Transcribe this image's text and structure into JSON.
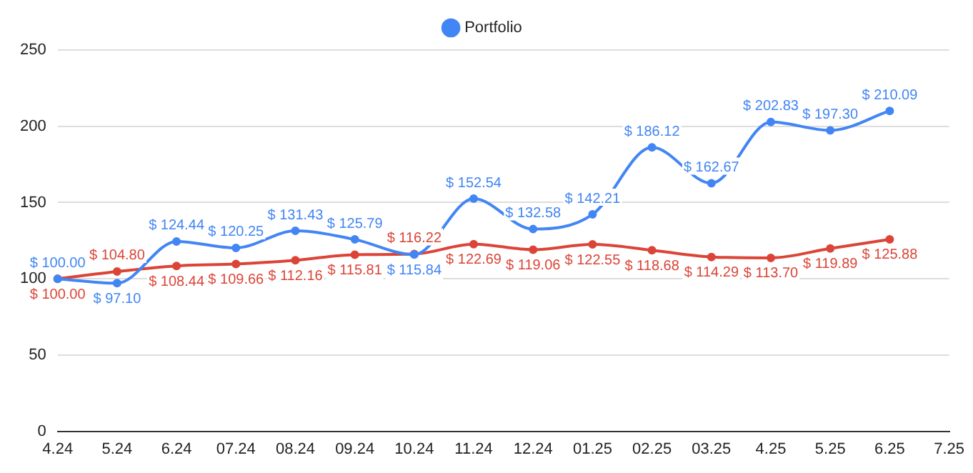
{
  "chart_data": {
    "type": "line",
    "categories": [
      "4.24",
      "5.24",
      "6.24",
      "07.24",
      "08.24",
      "09.24",
      "10.24",
      "11.24",
      "12.24",
      "01.25",
      "02.25",
      "03.25",
      "4.25",
      "5.25",
      "6.25",
      "7.25"
    ],
    "series": [
      {
        "name": "Portfolio",
        "color": "#4285f4",
        "values": [
          100.0,
          97.1,
          124.44,
          120.25,
          131.43,
          125.79,
          115.84,
          152.54,
          132.58,
          142.21,
          186.12,
          162.67,
          202.83,
          197.3,
          210.09,
          null
        ],
        "value_labels": [
          "$ 100.00",
          "$ 97.10",
          "$ 124.44",
          "$ 120.25",
          "$ 131.43",
          "$ 125.79",
          "$ 115.84",
          "$ 152.54",
          "$ 132.58",
          "$ 142.21",
          "$ 186.12",
          "$ 162.67",
          "$ 202.83",
          "$ 197.30",
          "$ 210.09",
          null
        ]
      },
      {
        "color": "#db4437",
        "values": [
          100.0,
          104.8,
          108.44,
          109.66,
          112.16,
          115.81,
          116.22,
          122.69,
          119.06,
          122.55,
          118.68,
          114.29,
          113.7,
          119.89,
          125.88,
          null
        ],
        "value_labels": [
          "$ 100.00",
          "$ 104.80",
          "$ 108.44",
          "$ 109.66",
          "$ 112.16",
          "$ 115.81",
          "$ 116.22",
          "$ 122.69",
          "$ 119.06",
          "$ 122.55",
          "$ 118.68",
          "$ 114.29",
          "$ 113.70",
          "$ 119.89",
          "$ 125.88",
          null
        ]
      }
    ],
    "ylim": [
      0,
      250
    ],
    "yticks": [
      0,
      50,
      100,
      150,
      200,
      250
    ],
    "grid": "y",
    "legend": "top",
    "marker": "circle",
    "line_style": "solid"
  }
}
